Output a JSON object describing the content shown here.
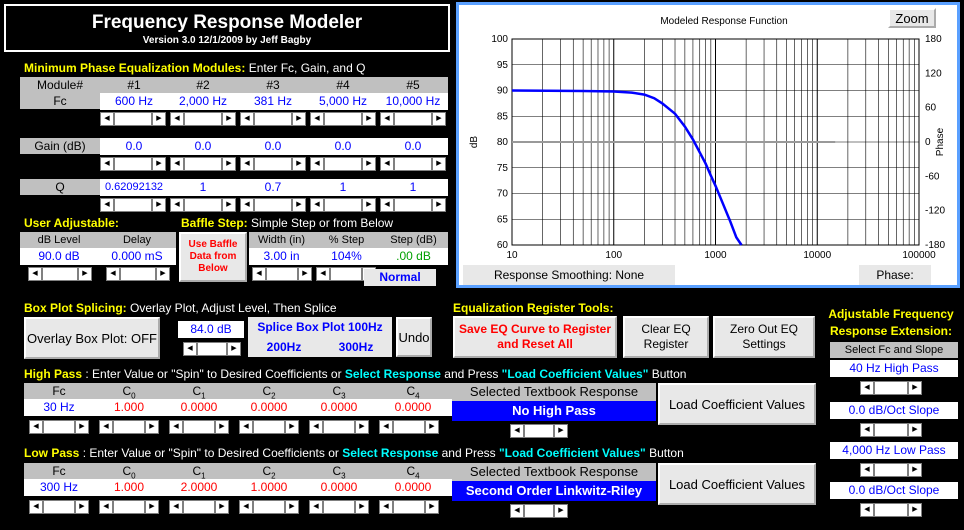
{
  "title": {
    "main": "Frequency Response Modeler",
    "sub": "Version 3.0  12/1/2009 by Jeff Bagby"
  },
  "min_phase": {
    "heading_y": "Minimum Phase Equalization Modules:",
    "heading_w": " Enter Fc, Gain, and Q",
    "module_label": "Module#",
    "modules": [
      "#1",
      "#2",
      "#3",
      "#4",
      "#5"
    ],
    "fc_label": "Fc",
    "fc": [
      "600 Hz",
      "2,000 Hz",
      "381 Hz",
      "5,000 Hz",
      "10,000 Hz"
    ],
    "gain_label": "Gain (dB)",
    "gain": [
      "0.0",
      "0.0",
      "0.0",
      "0.0",
      "0.0"
    ],
    "q_label": "Q",
    "q": [
      "0.62092132",
      "1",
      "0.7",
      "1",
      "1"
    ]
  },
  "user_adj": {
    "heading": "User Adjustable:",
    "db_label": "dB Level",
    "delay_label": "Delay",
    "db": "90.0 dB",
    "delay": "0.000 mS"
  },
  "baffle": {
    "heading_y": "Baffle Step:",
    "heading_w": " Simple Step or from Below",
    "use_btn": "Use Baffle Data from Below",
    "width_label": "Width (in)",
    "step_pct_label": "% Step",
    "step_db_label": "Step (dB)",
    "width": "3.00 in",
    "step_pct": "104%",
    "step_db": ".00 dB",
    "mode": "Normal"
  },
  "box": {
    "heading_y": "Box Plot Splicing:",
    "heading_w": " Overlay Plot, Adjust Level, Then Splice",
    "overlay_btn": "Overlay Box Plot: OFF",
    "level": "84.0 dB",
    "splice_label": "Splice Box Plot 100Hz",
    "f200": "200Hz",
    "f300": "300Hz",
    "undo": "Undo"
  },
  "eq_tools": {
    "heading": "Equalization Register Tools:",
    "save": "Save EQ Curve to Register and Reset All",
    "clear": "Clear EQ Register",
    "zero": "Zero Out EQ Settings"
  },
  "ext": {
    "heading": "Adjustable Frequency Response Extension:",
    "select_label": "Select Fc and Slope",
    "hp": "40 Hz High Pass",
    "hp_slope": "0.0 dB/Oct Slope",
    "lp": "4,000 Hz Low Pass",
    "lp_slope": "0.0 dB/Oct Slope"
  },
  "high_pass": {
    "heading_y": "High Pass",
    "heading_w1": " : Enter Value or \"Spin\" to Desired Coefficients or ",
    "heading_c1": "Select Response",
    "heading_w2": " and Press ",
    "heading_c2": "\"Load Coefficient Values\"",
    "heading_w3": " Button",
    "cols": [
      "Fc",
      "C",
      "C",
      "C",
      "C",
      "C"
    ],
    "subs": [
      "",
      "0",
      "1",
      "2",
      "3",
      "4"
    ],
    "values": [
      "30 Hz",
      "1.000",
      "0.0000",
      "0.0000",
      "0.0000",
      "0.0000"
    ],
    "response_label": "Selected Textbook Response",
    "response": "No High Pass",
    "load": "Load Coefficient Values"
  },
  "low_pass": {
    "heading_y": "Low Pass",
    "heading_w1": " : Enter Value or \"Spin\" to Desired Coefficients or ",
    "heading_c1": "Select Response",
    "heading_w2": " and Press ",
    "heading_c2": "\"Load Coefficient Values\"",
    "heading_w3": " Button",
    "cols": [
      "Fc",
      "C",
      "C",
      "C",
      "C",
      "C"
    ],
    "subs": [
      "",
      "0",
      "1",
      "2",
      "3",
      "4"
    ],
    "values": [
      "300 Hz",
      "1.000",
      "2.0000",
      "1.0000",
      "0.0000",
      "0.0000"
    ],
    "response_label": "Selected Textbook Response",
    "response": "Second Order Linkwitz-Riley",
    "load": "Load Coefficient Values"
  },
  "chart_data": {
    "type": "line",
    "title": "Modeled Response Function",
    "zoom": "Zoom",
    "xlabel": "",
    "ylabel": "dB",
    "y2label": "Phase",
    "xscale": "log",
    "xlim": [
      10,
      100000
    ],
    "ylim": [
      60,
      100
    ],
    "y2lim": [
      -180,
      180
    ],
    "xticks": [
      "10",
      "100",
      "1000",
      "10000",
      "100000"
    ],
    "yticks": [
      "100",
      "95",
      "90",
      "85",
      "80",
      "75",
      "70",
      "65",
      "60"
    ],
    "y2ticks": [
      "180",
      "120",
      "60",
      "0",
      "-60",
      "-120",
      "-180"
    ],
    "series": [
      {
        "color": "#0000ff",
        "x": [
          10,
          50,
          100,
          150,
          200,
          250,
          300,
          400,
          500,
          600,
          700,
          800,
          900,
          1000,
          1200,
          1400,
          1600,
          1800
        ],
        "y": [
          90,
          89.9,
          89.8,
          89.6,
          89.2,
          88.5,
          87.5,
          85.5,
          83,
          80.5,
          78,
          75.8,
          73.5,
          71.5,
          67.7,
          64.5,
          61.5,
          59
        ]
      }
    ],
    "ref_line": {
      "y": 80,
      "color": "#999999"
    },
    "smoothing": "Response Smoothing: None",
    "phase_btn": "Phase:"
  }
}
